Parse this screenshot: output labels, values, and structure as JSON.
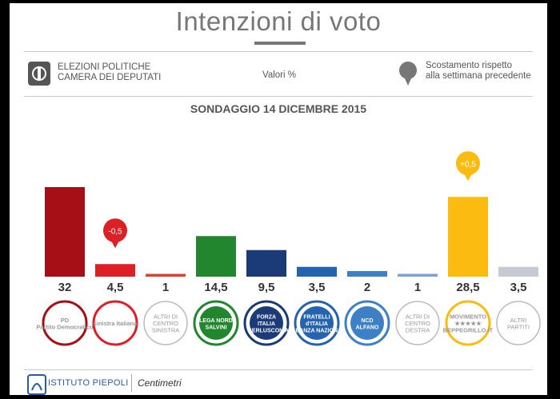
{
  "header": {
    "title": "Intenzioni di voto",
    "election_line1": "ELEZIONI POLITICHE",
    "election_line2": "CAMERA DEI DEPUTATI",
    "unit": "Valori %",
    "legend_line1": "Scostamento rispetto",
    "legend_line2": "alla settimana precedente",
    "subtitle": "SONDAGGIO 14 DICEMBRE 2015"
  },
  "footer": {
    "brand1": "ISTITUTO PIEPOLI",
    "brand2": "Centimetri"
  },
  "chart_data": {
    "type": "bar",
    "title": "Intenzioni di voto",
    "subtitle": "SONDAGGIO 14 DICEMBRE 2015",
    "ylabel": "",
    "xlabel": "",
    "ylim": [
      0,
      35
    ],
    "grid": false,
    "legend": "top-right",
    "categories": [
      {
        "id": "pd",
        "logo_lines": [
          "PD",
          "Partito Democratico"
        ],
        "color": "#a50f15",
        "value": 32,
        "value_label": "32",
        "delta": null
      },
      {
        "id": "si",
        "logo_lines": [
          "sinistra italiana"
        ],
        "color": "#dd1f26",
        "value": 4.5,
        "value_label": "4,5",
        "delta": "-0,5",
        "delta_color": "#dd1f26"
      },
      {
        "id": "altri_cs",
        "logo_lines": [
          "ALTRI DI",
          "CENTRO",
          "SINISTRA"
        ],
        "color": "#e0412f",
        "value": 1,
        "value_label": "1",
        "delta": null
      },
      {
        "id": "lega",
        "logo_lines": [
          "LEGA NORD",
          "SALVINI"
        ],
        "color": "#22862f",
        "value": 14.5,
        "value_label": "14,5",
        "delta": null
      },
      {
        "id": "fi",
        "logo_lines": [
          "FORZA",
          "ITALIA",
          "BERLUSCONI"
        ],
        "color": "#1b3a78",
        "value": 9.5,
        "value_label": "9,5",
        "delta": null
      },
      {
        "id": "fdi",
        "logo_lines": [
          "FRATELLI",
          "d'ITALIA",
          "ALLEANZA NAZIONALE"
        ],
        "color": "#2563ae",
        "value": 3.5,
        "value_label": "3,5",
        "delta": null
      },
      {
        "id": "ncd",
        "logo_lines": [
          "NCD",
          "ALFANO"
        ],
        "color": "#3d80c6",
        "value": 2,
        "value_label": "2",
        "delta": null
      },
      {
        "id": "altri_cd",
        "logo_lines": [
          "ALTRI DI",
          "CENTRO",
          "DESTRA"
        ],
        "color": "#7ea2d0",
        "value": 1,
        "value_label": "1",
        "delta": null
      },
      {
        "id": "m5s",
        "logo_lines": [
          "MOVIMENTO",
          "★★★★★",
          "BEPPEGRILLO.IT"
        ],
        "color": "#fbbb10",
        "value": 28.5,
        "value_label": "28,5",
        "delta": "+0,5",
        "delta_color": "#fbbb10"
      },
      {
        "id": "altri",
        "logo_lines": [
          "ALTRI",
          "PARTITI"
        ],
        "color": "#c6cbd3",
        "value": 3.5,
        "value_label": "3,5",
        "delta": null
      }
    ]
  }
}
